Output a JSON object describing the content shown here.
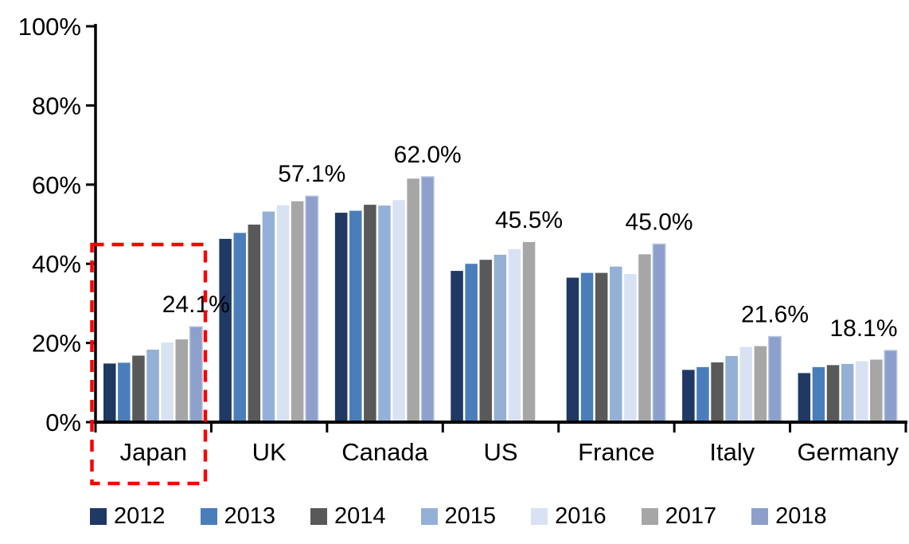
{
  "chart_data": {
    "type": "bar",
    "title": "",
    "xlabel": "",
    "ylabel": "",
    "categories": [
      "Japan",
      "UK",
      "Canada",
      "US",
      "France",
      "Italy",
      "Germany"
    ],
    "series": [
      {
        "name": "2012",
        "color": "#1F3864",
        "values": [
          14.8,
          46.3,
          52.9,
          38.2,
          36.5,
          13.2,
          12.4
        ]
      },
      {
        "name": "2013",
        "color": "#4A7EBB",
        "values": [
          15.0,
          47.8,
          53.4,
          40.0,
          37.7,
          13.9,
          13.9
        ]
      },
      {
        "name": "2014",
        "color": "#595959",
        "values": [
          16.8,
          49.9,
          54.9,
          41.0,
          37.7,
          15.1,
          14.4
        ]
      },
      {
        "name": "2015",
        "color": "#94B0D7",
        "values": [
          18.3,
          53.2,
          54.7,
          42.3,
          39.3,
          16.7,
          14.7
        ]
      },
      {
        "name": "2016",
        "color": "#D9E2F3",
        "values": [
          20.1,
          54.8,
          56.1,
          43.7,
          37.4,
          19.0,
          15.4
        ]
      },
      {
        "name": "2017",
        "color": "#A6A6A6",
        "values": [
          20.9,
          55.8,
          61.5,
          45.5,
          42.4,
          19.2,
          15.8
        ]
      },
      {
        "name": "2018",
        "color": "#8D9FCB",
        "border": "#B9C7E2",
        "values": [
          24.1,
          57.1,
          62.0,
          null,
          45.0,
          21.6,
          18.1
        ]
      }
    ],
    "data_labels": [
      "24.1%",
      "57.1%",
      "62.0%",
      "45.5%",
      "45.0%",
      "21.6%",
      "18.1%"
    ],
    "y_ticks": [
      "0%",
      "20%",
      "40%",
      "60%",
      "80%",
      "100%"
    ],
    "ylim": [
      0,
      100
    ],
    "grid": false,
    "legend_position": "bottom",
    "annotation": {
      "type": "dashed-box",
      "target": "Japan",
      "color": "#FB0102",
      "note": "red dashed rectangle highlighting the Japan group"
    },
    "colors": {
      "axis": "#000000",
      "text": "#000000",
      "background": "#FFFFFF"
    }
  }
}
